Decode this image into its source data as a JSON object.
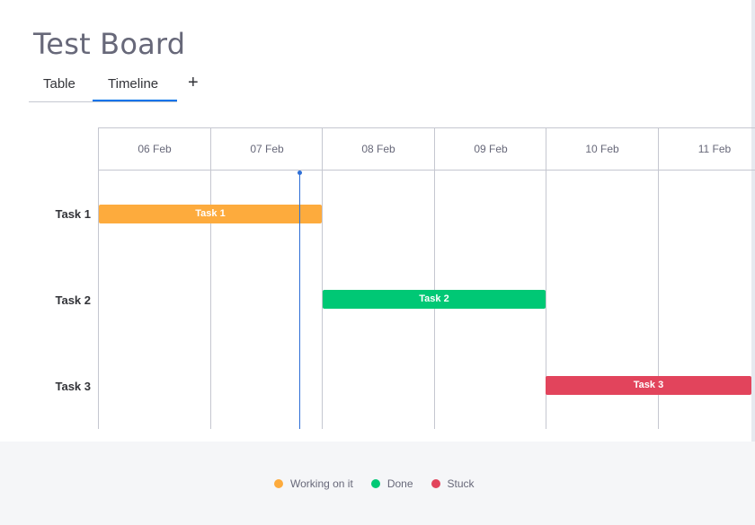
{
  "board": {
    "title": "Test Board"
  },
  "tabs": [
    {
      "label": "Table"
    },
    {
      "label": "Timeline"
    }
  ],
  "add_tab_label": "+",
  "timeline": {
    "dates": [
      "06 Feb",
      "07 Feb",
      "08 Feb",
      "09 Feb",
      "10 Feb",
      "11 Feb"
    ],
    "rows": [
      {
        "label": "Task 1",
        "bar_label": "Task 1",
        "status": "Working on it",
        "color": "#fdab3d"
      },
      {
        "label": "Task 2",
        "bar_label": "Task 2",
        "status": "Done",
        "color": "#00c875"
      },
      {
        "label": "Task 3",
        "bar_label": "Task 3",
        "status": "Stuck",
        "color": "#e2445c"
      }
    ]
  },
  "legend": [
    {
      "label": "Working on it",
      "color": "#fdab3d"
    },
    {
      "label": "Done",
      "color": "#00c875"
    },
    {
      "label": "Stuck",
      "color": "#e2445c"
    }
  ],
  "colors": {
    "accent": "#0073ea",
    "today_marker": "#2e6fd6"
  }
}
